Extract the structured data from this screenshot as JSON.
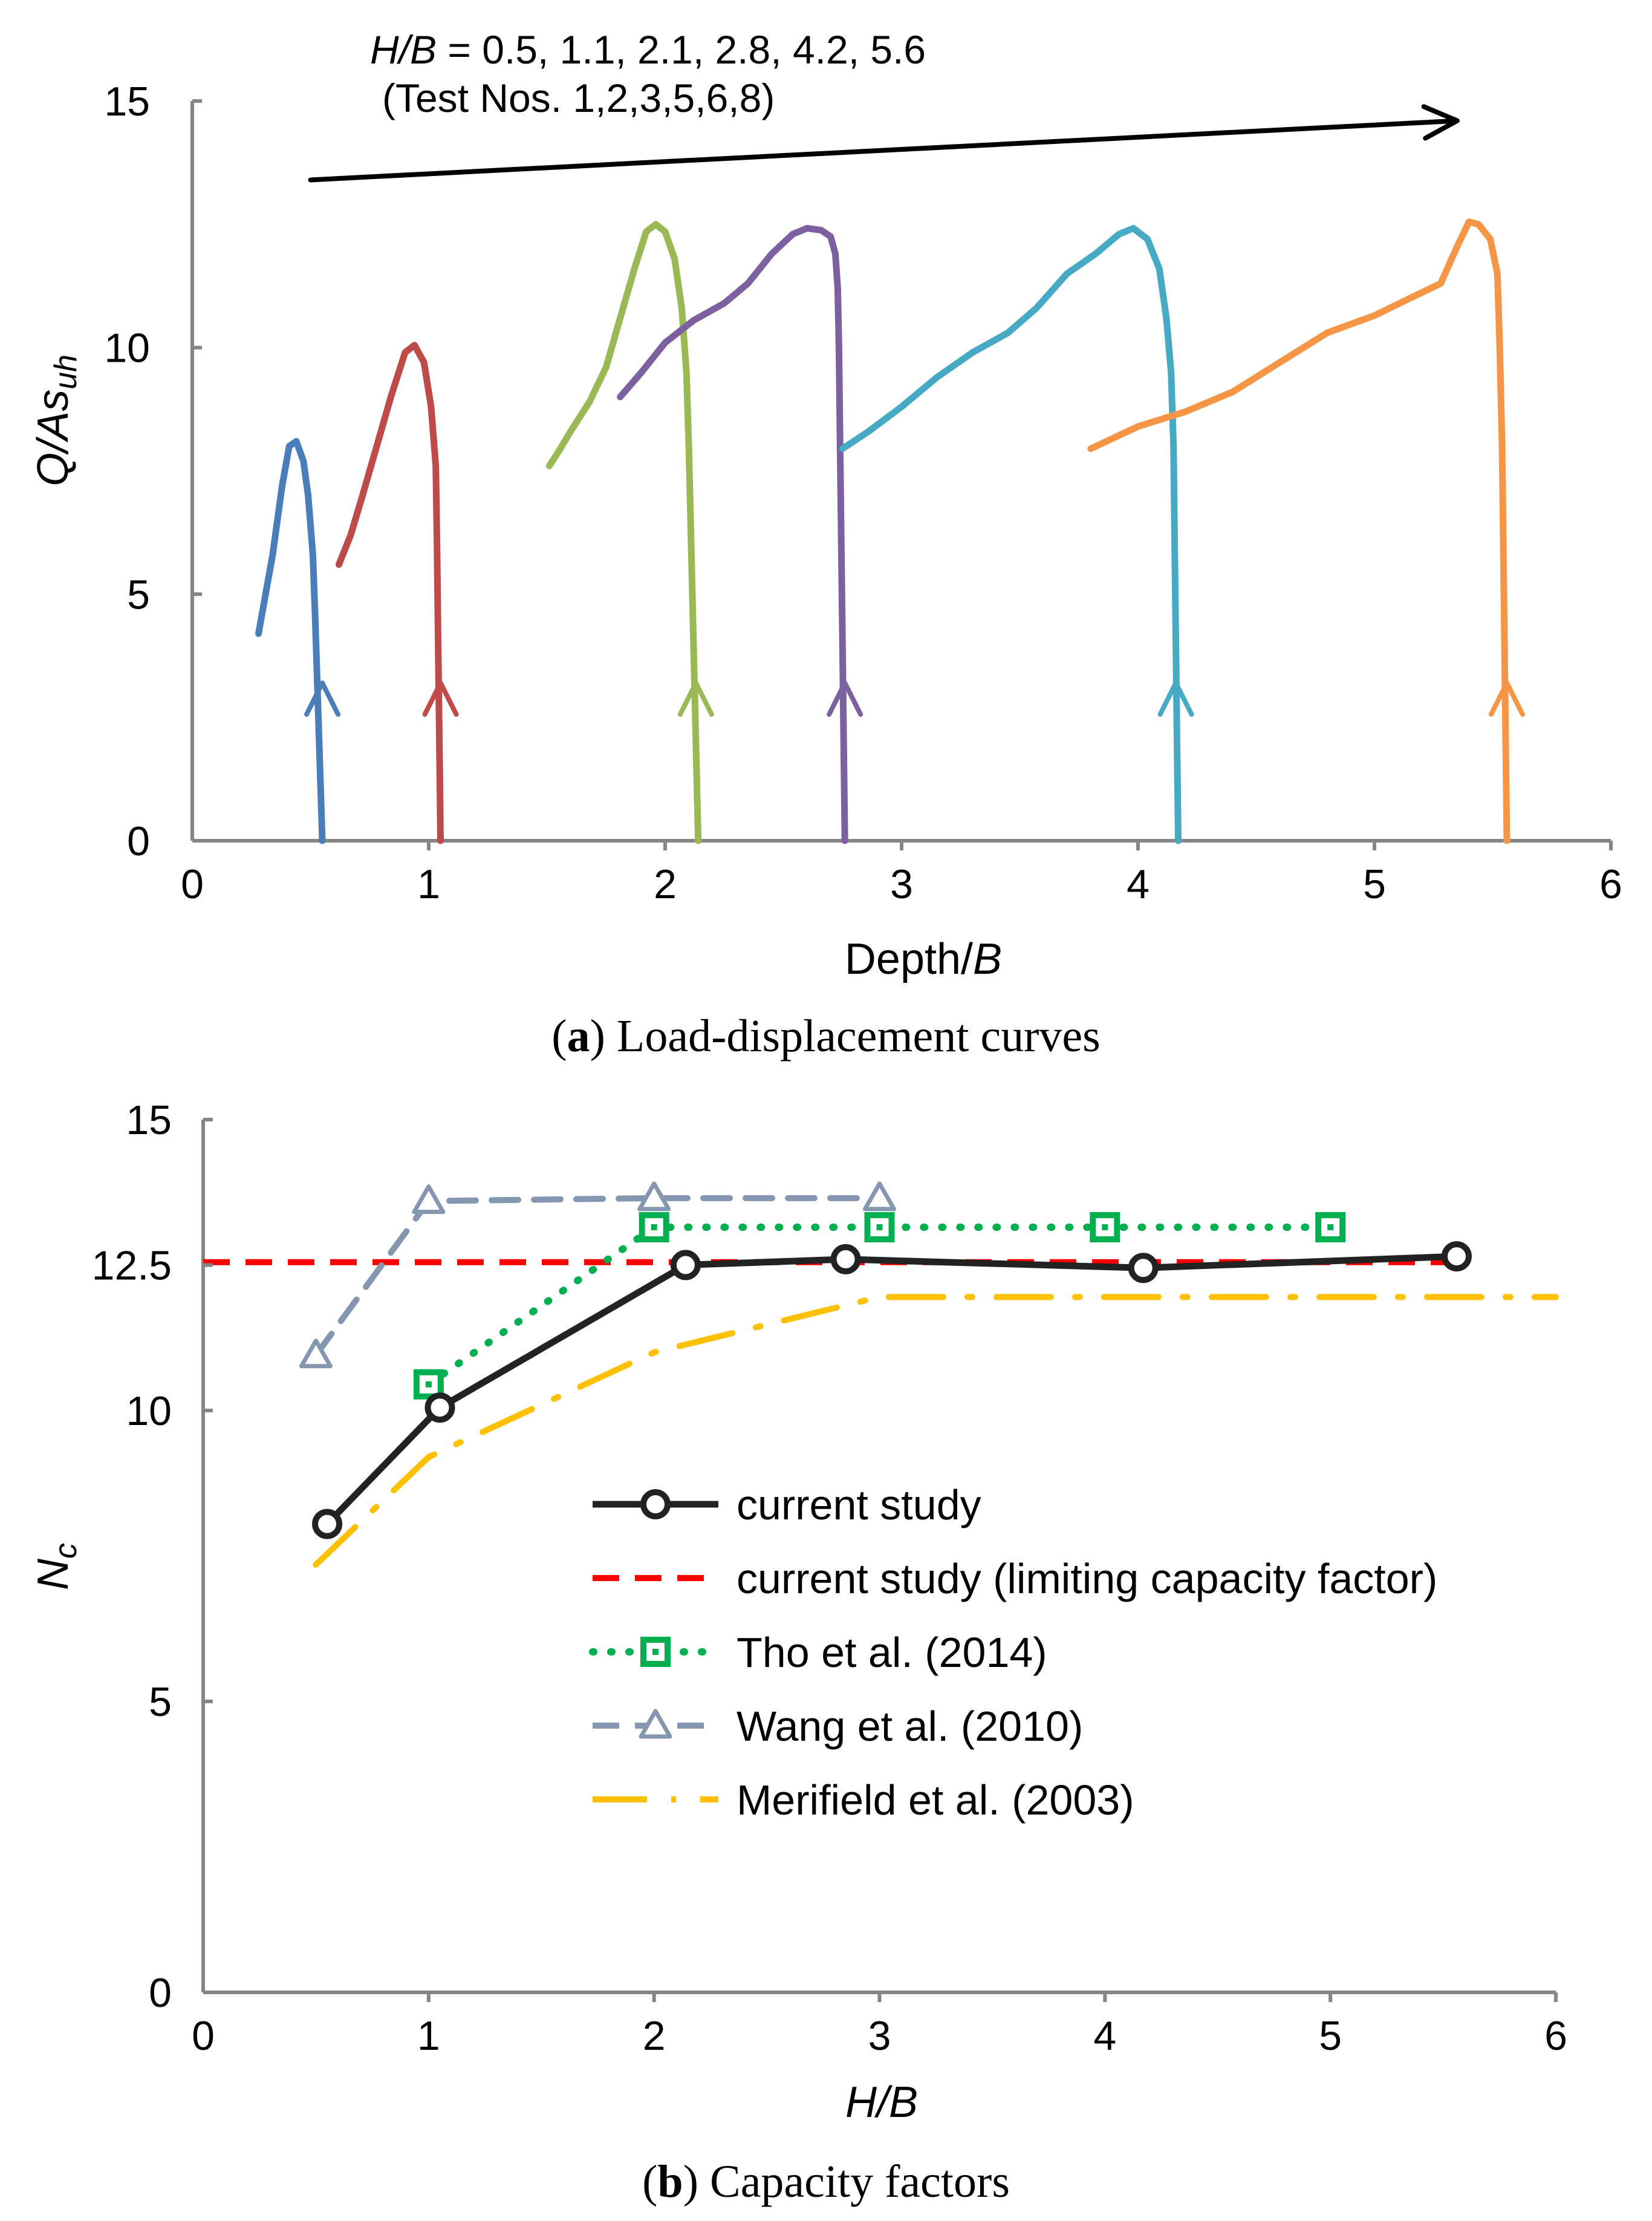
{
  "figure": {
    "caption_a_letter": "a",
    "caption_a_text": " Load-displacement curves",
    "caption_b_letter": "b",
    "caption_b_text": " Capacity factors"
  },
  "chart_data": [
    {
      "type": "line",
      "title": "Load-displacement curves",
      "xlabel_plain": "Depth/",
      "xlabel_italic": "B",
      "ylabel_main": "Q/As",
      "ylabel_sub": "uh",
      "xlim": [
        0,
        6
      ],
      "ylim": [
        0,
        15
      ],
      "xticks": [
        "0",
        "1",
        "2",
        "3",
        "4",
        "5",
        "6"
      ],
      "yticks": [
        "0",
        "5",
        "10",
        "15"
      ],
      "annotation": {
        "line1_italic": "H/B",
        "line1_rest": " = 0.5, 1.1, 2.1, 2.8, 4.2, 5.6",
        "line2": "(Test Nos. 1,2,3,5,6,8)",
        "arrow_from": [
          0.5,
          13.4
        ],
        "arrow_to": [
          5.35,
          14.6
        ]
      },
      "series": [
        {
          "name": "Test No. 1 (H/B = 0.5)",
          "color": "#4a7ebb",
          "arrow_at": [
            0.55,
            3.2
          ],
          "points": [
            [
              0.55,
              0
            ],
            [
              0.54,
              1.5
            ],
            [
              0.53,
              3
            ],
            [
              0.52,
              4.5
            ],
            [
              0.51,
              5.8
            ],
            [
              0.49,
              7.0
            ],
            [
              0.47,
              7.7
            ],
            [
              0.44,
              8.1
            ],
            [
              0.41,
              8.0
            ],
            [
              0.38,
              7.2
            ],
            [
              0.34,
              5.8
            ],
            [
              0.31,
              5.0
            ],
            [
              0.28,
              4.2
            ]
          ]
        },
        {
          "name": "Test No. 2 (H/B = 1.1)",
          "color": "#be4b48",
          "arrow_at": [
            1.05,
            3.2
          ],
          "points": [
            [
              1.05,
              0
            ],
            [
              1.045,
              2
            ],
            [
              1.04,
              4
            ],
            [
              1.035,
              6
            ],
            [
              1.03,
              7.6
            ],
            [
              1.01,
              8.8
            ],
            [
              0.98,
              9.7
            ],
            [
              0.94,
              10.05
            ],
            [
              0.9,
              9.9
            ],
            [
              0.84,
              9.0
            ],
            [
              0.78,
              8.0
            ],
            [
              0.72,
              7.0
            ],
            [
              0.67,
              6.2
            ],
            [
              0.62,
              5.6
            ]
          ]
        },
        {
          "name": "Test No. 3 (H/B = 2.1)",
          "color": "#98b954",
          "arrow_at": [
            2.13,
            3.2
          ],
          "points": [
            [
              2.14,
              0
            ],
            [
              2.13,
              2
            ],
            [
              2.12,
              4
            ],
            [
              2.11,
              6
            ],
            [
              2.1,
              8
            ],
            [
              2.09,
              9.5
            ],
            [
              2.07,
              10.8
            ],
            [
              2.04,
              11.8
            ],
            [
              2.0,
              12.35
            ],
            [
              1.96,
              12.5
            ],
            [
              1.92,
              12.35
            ],
            [
              1.87,
              11.6
            ],
            [
              1.81,
              10.6
            ],
            [
              1.75,
              9.6
            ],
            [
              1.68,
              8.9
            ],
            [
              1.6,
              8.3
            ],
            [
              1.55,
              7.9
            ],
            [
              1.51,
              7.6
            ]
          ]
        },
        {
          "name": "Test No. 5 (H/B = 2.8)",
          "color": "#7d60a0",
          "arrow_at": [
            2.76,
            3.2
          ],
          "points": [
            [
              2.76,
              0
            ],
            [
              2.755,
              2
            ],
            [
              2.75,
              4
            ],
            [
              2.745,
              6
            ],
            [
              2.74,
              8
            ],
            [
              2.735,
              10
            ],
            [
              2.73,
              11.2
            ],
            [
              2.72,
              11.9
            ],
            [
              2.7,
              12.25
            ],
            [
              2.66,
              12.38
            ],
            [
              2.6,
              12.42
            ],
            [
              2.54,
              12.3
            ],
            [
              2.45,
              11.9
            ],
            [
              2.35,
              11.3
            ],
            [
              2.25,
              10.9
            ],
            [
              2.12,
              10.55
            ],
            [
              2.0,
              10.1
            ],
            [
              1.9,
              9.5
            ],
            [
              1.81,
              9.0
            ]
          ]
        },
        {
          "name": "Test No. 6 (H/B = 4.2)",
          "color": "#46aac5",
          "arrow_at": [
            4.16,
            3.2
          ],
          "points": [
            [
              4.17,
              0
            ],
            [
              4.165,
              2
            ],
            [
              4.16,
              4
            ],
            [
              4.155,
              6
            ],
            [
              4.15,
              8
            ],
            [
              4.14,
              9.5
            ],
            [
              4.12,
              10.6
            ],
            [
              4.09,
              11.6
            ],
            [
              4.04,
              12.2
            ],
            [
              3.98,
              12.42
            ],
            [
              3.92,
              12.3
            ],
            [
              3.82,
              11.9
            ],
            [
              3.7,
              11.5
            ],
            [
              3.57,
              10.8
            ],
            [
              3.45,
              10.3
            ],
            [
              3.3,
              9.9
            ],
            [
              3.15,
              9.4
            ],
            [
              3.0,
              8.8
            ],
            [
              2.86,
              8.3
            ],
            [
              2.75,
              7.95
            ]
          ]
        },
        {
          "name": "Test No. 8 (H/B = 5.6)",
          "color": "#f69545",
          "arrow_at": [
            5.56,
            3.2
          ],
          "points": [
            [
              5.56,
              0
            ],
            [
              5.555,
              2
            ],
            [
              5.55,
              4
            ],
            [
              5.545,
              6
            ],
            [
              5.54,
              8
            ],
            [
              5.53,
              10
            ],
            [
              5.52,
              11.5
            ],
            [
              5.49,
              12.2
            ],
            [
              5.44,
              12.5
            ],
            [
              5.4,
              12.55
            ],
            [
              5.35,
              12.05
            ],
            [
              5.28,
              11.3
            ],
            [
              5.15,
              11.0
            ],
            [
              5.0,
              10.65
            ],
            [
              4.8,
              10.3
            ],
            [
              4.6,
              9.7
            ],
            [
              4.4,
              9.1
            ],
            [
              4.2,
              8.7
            ],
            [
              4.0,
              8.4
            ],
            [
              3.8,
              7.95
            ]
          ]
        }
      ]
    },
    {
      "type": "line",
      "title": "Capacity factors",
      "xlabel": "H/B",
      "ylabel_main": "N",
      "ylabel_sub": "c",
      "xlim": [
        0,
        6
      ],
      "ylim": [
        0,
        15
      ],
      "xticks": [
        "0",
        "1",
        "2",
        "3",
        "4",
        "5",
        "6"
      ],
      "yticks": [
        "0",
        "5",
        "10",
        "12.5",
        "15"
      ],
      "series": [
        {
          "name": "current study",
          "color": "#222222",
          "style": "solid",
          "marker": "circle",
          "x": [
            0.55,
            1.05,
            2.14,
            2.85,
            4.17,
            5.56
          ],
          "y": [
            8.05,
            10.05,
            12.5,
            12.6,
            12.45,
            12.65
          ]
        },
        {
          "name": "current study (limiting capacity factor)",
          "color": "#ff0000",
          "style": "dashed",
          "marker": "none",
          "x": [
            0,
            5.56
          ],
          "y": [
            12.55,
            12.55
          ]
        },
        {
          "name": "Tho et al. (2014)",
          "color": "#00b050",
          "style": "dotted",
          "marker": "square",
          "x": [
            1.0,
            2.0,
            3.0,
            4.0,
            5.0
          ],
          "y": [
            10.45,
            13.15,
            13.15,
            13.15,
            13.15
          ]
        },
        {
          "name": "Wang et al. (2010)",
          "color": "#8496b0",
          "style": "dashed",
          "marker": "triangle",
          "x": [
            0.5,
            1.0,
            2.0,
            3.0
          ],
          "y": [
            10.95,
            13.6,
            13.65,
            13.65
          ]
        },
        {
          "name": "Merifield et al. (2003)",
          "color": "#ffc000",
          "style": "dashdot",
          "marker": "none",
          "x": [
            0.5,
            1.0,
            2.0,
            3.0,
            4.0,
            5.0,
            6.0
          ],
          "y": [
            7.35,
            9.2,
            11.0,
            11.95,
            11.95,
            11.95,
            11.95
          ]
        }
      ]
    }
  ]
}
